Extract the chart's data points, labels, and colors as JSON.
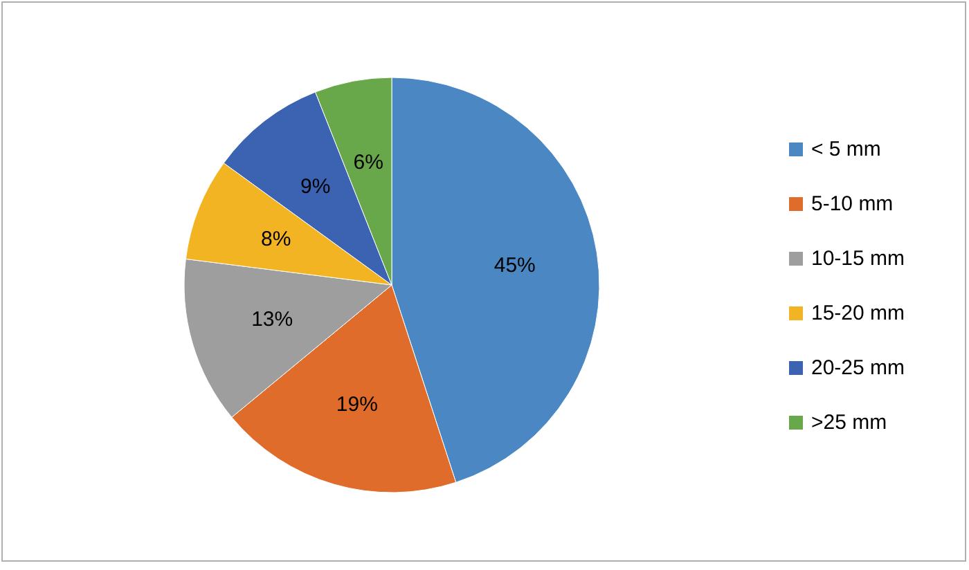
{
  "chart_data": {
    "type": "pie",
    "categories": [
      "< 5 mm",
      "5-10 mm",
      "10-15 mm",
      "15-20 mm",
      "20-25 mm",
      ">25 mm"
    ],
    "values": [
      45,
      19,
      13,
      8,
      9,
      6
    ],
    "colors": [
      "#4a87c3",
      "#e06c2b",
      "#9e9e9e",
      "#f3b423",
      "#3b63b2",
      "#68a84a"
    ],
    "value_labels": [
      "45%",
      "19%",
      "13%",
      "8%",
      "9%",
      "6%"
    ],
    "legend": "right"
  }
}
